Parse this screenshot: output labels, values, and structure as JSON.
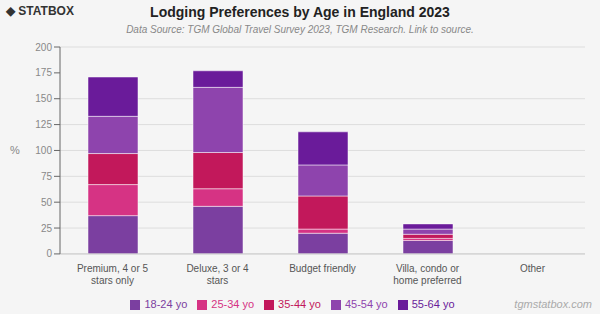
{
  "chart_data": {
    "type": "bar",
    "title": "Lodging Preferences by Age in England 2023",
    "subtitle": "Data Source: TGM Global Travel Survey 2023, TGM Research. Link to source.",
    "annotations": [
      "◆ STATBOX",
      "tgmstatbox.com"
    ],
    "categories": [
      "Premium, 4 or 5 stars only",
      "Deluxe, 3 or 4 stars",
      "Budget friendly",
      "Villa, condo or home preferred",
      "Other"
    ],
    "series": [
      {
        "name": "18-24 yo",
        "color": "#7b3fa0",
        "values": [
          37,
          46,
          20,
          13,
          0
        ]
      },
      {
        "name": "25-34 yo",
        "color": "#d63384",
        "values": [
          30,
          17,
          4,
          2,
          0
        ]
      },
      {
        "name": "35-44 yo",
        "color": "#c2185b",
        "values": [
          30,
          35,
          32,
          4,
          0
        ]
      },
      {
        "name": "45-54 yo",
        "color": "#8e44ad",
        "values": [
          36,
          63,
          30,
          5,
          0
        ]
      },
      {
        "name": "55-64 yo",
        "color": "#6a1b9a",
        "values": [
          38,
          16,
          32,
          5,
          0
        ]
      }
    ],
    "stacked": true,
    "ylabel": "%",
    "ylim": [
      0,
      200
    ],
    "yticks": [
      0,
      25,
      50,
      75,
      100,
      125,
      150,
      175,
      200
    ],
    "grid": true,
    "legend": "bottom"
  }
}
